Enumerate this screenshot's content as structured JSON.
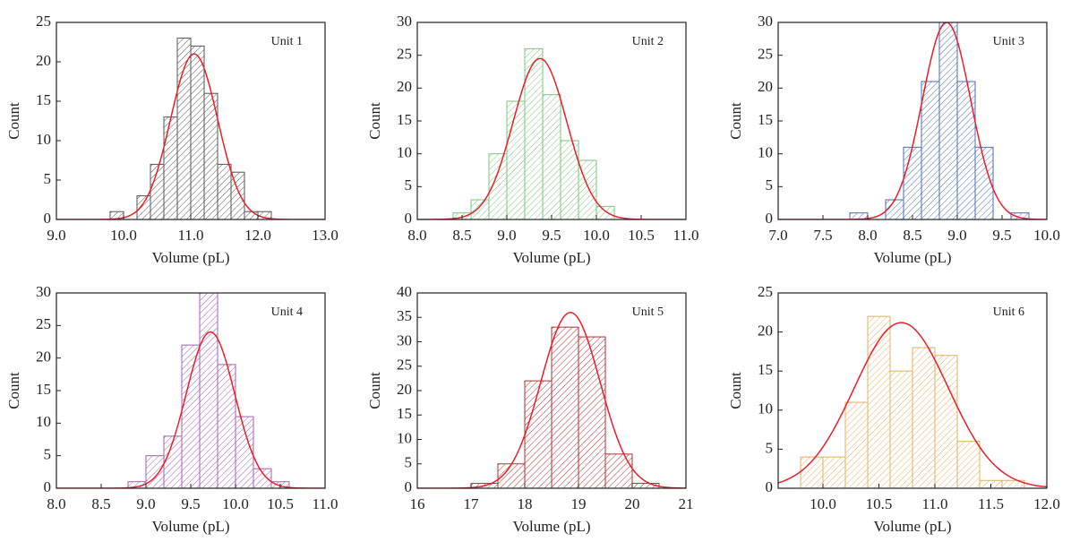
{
  "chart_data": [
    {
      "type": "histogram",
      "annotation": "Unit 1",
      "xlabel": "Volume (pL)",
      "ylabel": "Count",
      "bins": [
        9.8,
        10.0,
        10.2,
        10.4,
        10.6,
        10.8,
        11.0,
        11.2,
        11.4,
        11.6,
        11.8,
        12.0,
        12.2
      ],
      "counts": [
        1,
        0,
        3,
        7,
        13,
        23,
        22,
        16,
        7,
        6,
        1,
        1
      ],
      "color": "#555555",
      "xlim": [
        9,
        13
      ],
      "xticks": [
        {
          "value": 9,
          "label": "9.0"
        },
        {
          "value": 10,
          "label": "10.0"
        },
        {
          "value": 11,
          "label": "11.0"
        },
        {
          "value": 12,
          "label": "12.0"
        },
        {
          "value": 13,
          "label": "13.0"
        }
      ],
      "ylim": [
        0,
        25
      ],
      "yticks": [
        0,
        5,
        10,
        15,
        20,
        25
      ],
      "fit": {
        "color": "#e8202a",
        "mean": 11.05,
        "sigma": 0.35,
        "peak": 21
      }
    },
    {
      "type": "histogram",
      "annotation": "Unit 2",
      "xlabel": "Volume (pL)",
      "ylabel": "Count",
      "bins": [
        8.4,
        8.6,
        8.8,
        9.0,
        9.2,
        9.4,
        9.6,
        9.8,
        10.0,
        10.2
      ],
      "counts": [
        1,
        3,
        10,
        18,
        26,
        19,
        12,
        9,
        2
      ],
      "color": "#7cc47c",
      "xlim": [
        8,
        11
      ],
      "xticks": [
        {
          "value": 8,
          "label": "8.0"
        },
        8.5,
        {
          "value": 9,
          "label": "9.0"
        },
        9.5,
        {
          "value": 10,
          "label": "10.0"
        },
        10.5,
        {
          "value": 11,
          "label": "11.0"
        }
      ],
      "ylim": [
        0,
        30
      ],
      "yticks": [
        0,
        5,
        10,
        15,
        20,
        25,
        30
      ],
      "fit": {
        "color": "#e8202a",
        "mean": 9.37,
        "sigma": 0.3,
        "peak": 24.5
      }
    },
    {
      "type": "histogram",
      "annotation": "Unit 3",
      "xlabel": "Volume (pL)",
      "ylabel": "Count",
      "bins": [
        7.8,
        8.0,
        8.2,
        8.4,
        8.6,
        8.8,
        9.0,
        9.2,
        9.4,
        9.6,
        9.8
      ],
      "counts": [
        1,
        0,
        3,
        11,
        21,
        31,
        21,
        11,
        0,
        1
      ],
      "color": "#4a6fb5",
      "xlim": [
        7,
        10
      ],
      "xticks": [
        {
          "value": 7,
          "label": "7.0"
        },
        7.5,
        {
          "value": 8,
          "label": "8.0"
        },
        8.5,
        {
          "value": 9,
          "label": "9.0"
        },
        9.5,
        {
          "value": 10,
          "label": "10.0"
        }
      ],
      "ylim": [
        0,
        30
      ],
      "yticks": [
        0,
        5,
        10,
        15,
        20,
        25,
        30
      ],
      "fit": {
        "color": "#e8202a",
        "mean": 8.88,
        "sigma": 0.27,
        "peak": 30
      }
    },
    {
      "type": "histogram",
      "annotation": "Unit 4",
      "xlabel": "Volume (pL)",
      "ylabel": "Count",
      "bins": [
        8.8,
        9.0,
        9.2,
        9.4,
        9.6,
        9.8,
        10.0,
        10.2,
        10.4,
        10.6
      ],
      "counts": [
        1,
        5,
        8,
        22,
        30,
        19,
        11,
        3,
        1
      ],
      "color": "#a060b0",
      "xlim": [
        8,
        11
      ],
      "xticks": [
        {
          "value": 8,
          "label": "8.0"
        },
        8.5,
        {
          "value": 9,
          "label": "9.0"
        },
        9.5,
        {
          "value": 10,
          "label": "10.0"
        },
        10.5,
        {
          "value": 11,
          "label": "11.0"
        }
      ],
      "ylim": [
        0,
        30
      ],
      "yticks": [
        0,
        5,
        10,
        15,
        20,
        25,
        30
      ],
      "fit": {
        "color": "#e8202a",
        "mean": 9.72,
        "sigma": 0.27,
        "peak": 24
      }
    },
    {
      "type": "histogram",
      "annotation": "Unit 5",
      "xlabel": "Volume (pL)",
      "ylabel": "Count",
      "bins": [
        17,
        17.5,
        18,
        18.5,
        19,
        19.5,
        20,
        20.5
      ],
      "counts": [
        1,
        5,
        22,
        33,
        31,
        7,
        1
      ],
      "color": "#b03030",
      "xlim": [
        16,
        21
      ],
      "xticks": [
        16,
        17,
        18,
        19,
        20,
        21
      ],
      "ylim": [
        0,
        40
      ],
      "yticks": [
        0,
        5,
        10,
        15,
        20,
        25,
        30,
        35,
        40
      ],
      "fit": {
        "color": "#e8202a",
        "mean": 18.85,
        "sigma": 0.55,
        "peak": 36
      }
    },
    {
      "type": "histogram",
      "annotation": "Unit 6",
      "xlabel": "Volume (pL)",
      "ylabel": "Count",
      "bins": [
        9.8,
        10.0,
        10.2,
        10.4,
        10.6,
        10.8,
        11.0,
        11.2,
        11.4,
        11.6,
        11.8
      ],
      "counts": [
        4,
        4,
        11,
        22,
        15,
        18,
        17,
        6,
        1,
        1
      ],
      "color": "#e0b060",
      "xlim": [
        9.6,
        12
      ],
      "xticks": [
        {
          "value": 10,
          "label": "10.0"
        },
        10.5,
        {
          "value": 11,
          "label": "11.0"
        },
        11.5,
        {
          "value": 12,
          "label": "12.0"
        }
      ],
      "ylim": [
        0,
        25
      ],
      "yticks": [
        0,
        5,
        10,
        15,
        20,
        25
      ],
      "fit": {
        "color": "#e8202a",
        "mean": 10.7,
        "sigma": 0.42,
        "peak": 21.2
      }
    }
  ]
}
